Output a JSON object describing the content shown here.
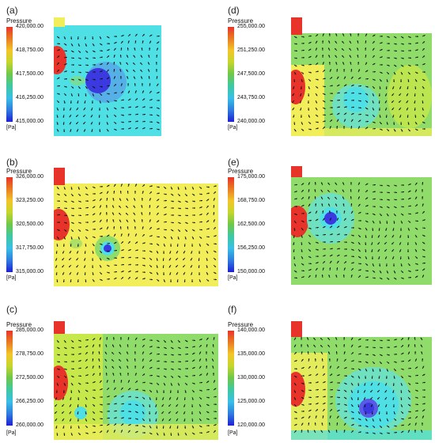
{
  "legend_title": "Pressure",
  "unit": "[Pa]",
  "panels": [
    {
      "label": "(a)",
      "ticks": [
        "420,000.00",
        "418,750.00",
        "417,500.00",
        "416,250.00",
        "415,000.00"
      ]
    },
    {
      "label": "(b)",
      "ticks": [
        "326,000.00",
        "323,250.00",
        "320,500.00",
        "317,750.00",
        "315,000.00"
      ]
    },
    {
      "label": "(c)",
      "ticks": [
        "285,000.00",
        "278,750.00",
        "272,500.00",
        "266,250.00",
        "260,000.00"
      ]
    },
    {
      "label": "(d)",
      "ticks": [
        "255,000.00",
        "251,250.00",
        "247,500.00",
        "243,750.00",
        "240,000.00"
      ]
    },
    {
      "label": "(e)",
      "ticks": [
        "175,000.00",
        "168,750.00",
        "162,500.00",
        "156,250.00",
        "150,000.00"
      ]
    },
    {
      "label": "(f)",
      "ticks": [
        "140,000.00",
        "135,000.00",
        "130,000.00",
        "125,000.00",
        "120,000.00"
      ]
    }
  ],
  "colors": {
    "red": "#e8332a",
    "orange": "#ea7a22",
    "yellow": "#f2ee5a",
    "green": "#8fdc6a",
    "cyan": "#4fe0e6",
    "blue": "#3a3ae0",
    "arrow": "#111111"
  }
}
